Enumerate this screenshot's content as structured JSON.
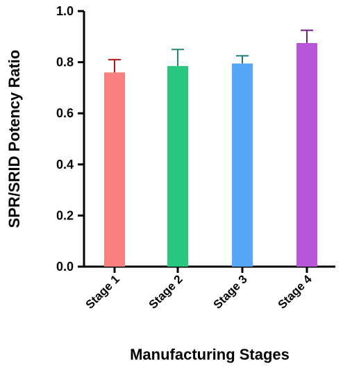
{
  "chart_data": {
    "type": "bar",
    "title": "",
    "xlabel": "Manufacturing Stages",
    "ylabel": "SPR/SRID Potency Ratio",
    "ylim": [
      0,
      1.0
    ],
    "yticks": [
      "0.0",
      "0.2",
      "0.4",
      "0.6",
      "0.8",
      "1.0"
    ],
    "grid": false,
    "categories": [
      "Stage 1",
      "Stage 2",
      "Stage 3",
      "Stage 4"
    ],
    "values": [
      0.76,
      0.785,
      0.795,
      0.875
    ],
    "errors": [
      0.05,
      0.065,
      0.03,
      0.05
    ],
    "colors": [
      "#fa8080",
      "#25c87e",
      "#56a6f9",
      "#b756d8"
    ],
    "error_colors": [
      "#b8161c",
      "#1e8a6a",
      "#1f7a7a",
      "#6a1f7a"
    ]
  }
}
